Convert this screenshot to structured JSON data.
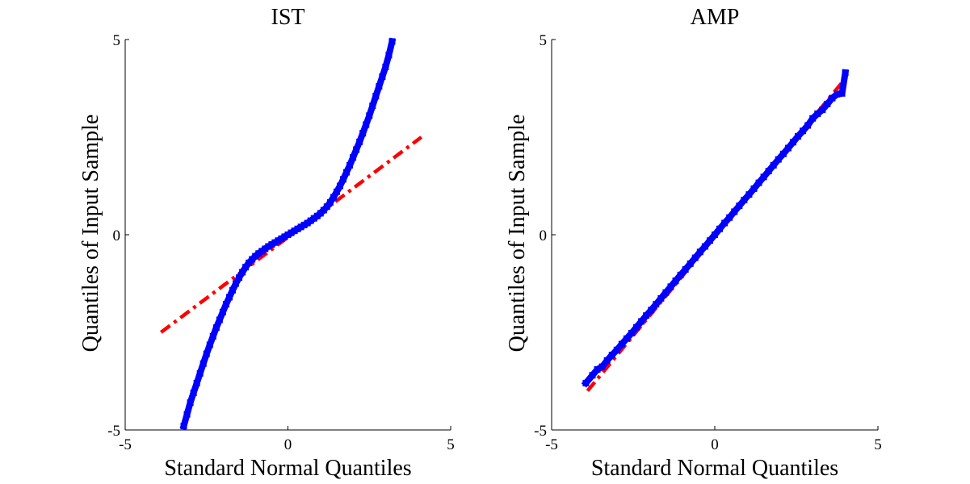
{
  "figure": {
    "background": "#ffffff"
  },
  "chart_data": [
    {
      "type": "scatter",
      "title": "IST",
      "xlabel": "Standard Normal Quantiles",
      "ylabel": "Quantiles of Input Sample",
      "xlim": [
        -5,
        5
      ],
      "ylim": [
        -5,
        5
      ],
      "xticks": [
        {
          "v": -5,
          "label": "-5"
        },
        {
          "v": 0,
          "label": "0"
        },
        {
          "v": 5,
          "label": "5"
        }
      ],
      "yticks": [
        {
          "v": -5,
          "label": "-5"
        },
        {
          "v": 0,
          "label": "0"
        },
        {
          "v": 5,
          "label": "5"
        }
      ],
      "series": [
        {
          "name": "reference line",
          "style": "dash-dot",
          "color": "#ff0000",
          "x": [
            -3.9,
            4.1
          ],
          "y": [
            -2.5,
            2.5
          ]
        },
        {
          "name": "sample quantiles",
          "style": "markers",
          "color": "#0000ff",
          "x": [
            -3.2,
            -3.1,
            -3.0,
            -2.9,
            -2.8,
            -2.7,
            -2.6,
            -2.5,
            -2.4,
            -2.3,
            -2.2,
            -2.1,
            -2.0,
            -1.9,
            -1.8,
            -1.7,
            -1.6,
            -1.5,
            -1.4,
            -1.3,
            -1.2,
            -1.1,
            -1.0,
            -0.9,
            -0.8,
            -0.7,
            -0.6,
            -0.5,
            -0.4,
            -0.3,
            -0.2,
            -0.1,
            0.0,
            0.1,
            0.2,
            0.3,
            0.4,
            0.5,
            0.6,
            0.7,
            0.8,
            0.9,
            1.0,
            1.1,
            1.2,
            1.3,
            1.4,
            1.5,
            1.6,
            1.7,
            1.8,
            1.9,
            2.0,
            2.1,
            2.2,
            2.3,
            2.4,
            2.5,
            2.6,
            2.7,
            2.8,
            2.9,
            3.0,
            3.1,
            3.2
          ],
          "y": [
            -4.9,
            -4.6,
            -4.3,
            -4.05,
            -3.8,
            -3.55,
            -3.3,
            -3.05,
            -2.82,
            -2.6,
            -2.38,
            -2.18,
            -1.98,
            -1.78,
            -1.6,
            -1.42,
            -1.25,
            -1.1,
            -0.96,
            -0.83,
            -0.72,
            -0.63,
            -0.55,
            -0.48,
            -0.42,
            -0.36,
            -0.3,
            -0.25,
            -0.2,
            -0.15,
            -0.1,
            -0.05,
            0.0,
            0.05,
            0.1,
            0.15,
            0.2,
            0.25,
            0.3,
            0.36,
            0.42,
            0.48,
            0.55,
            0.63,
            0.72,
            0.83,
            0.96,
            1.1,
            1.25,
            1.42,
            1.6,
            1.78,
            1.98,
            2.18,
            2.38,
            2.6,
            2.82,
            3.05,
            3.3,
            3.55,
            3.8,
            4.05,
            4.3,
            4.6,
            4.95
          ]
        }
      ]
    },
    {
      "type": "scatter",
      "title": "AMP",
      "xlabel": "Standard Normal Quantiles",
      "ylabel": "Quantiles of Input Sample",
      "xlim": [
        -5,
        5
      ],
      "ylim": [
        -5,
        5
      ],
      "xticks": [
        {
          "v": -5,
          "label": "-5"
        },
        {
          "v": 0,
          "label": "0"
        },
        {
          "v": 5,
          "label": "5"
        }
      ],
      "yticks": [
        {
          "v": -5,
          "label": "-5"
        },
        {
          "v": 0,
          "label": "0"
        },
        {
          "v": 5,
          "label": "5"
        }
      ],
      "series": [
        {
          "name": "reference line",
          "style": "dash-dot",
          "color": "#ff0000",
          "x": [
            -3.9,
            4.1
          ],
          "y": [
            -4.0,
            4.1
          ]
        },
        {
          "name": "sample quantiles",
          "style": "markers",
          "color": "#0000ff",
          "x": [
            -3.95,
            -3.75,
            -3.6,
            -3.45,
            -3.3,
            -3.15,
            -3.0,
            -2.85,
            -2.7,
            -2.55,
            -2.4,
            -2.25,
            -2.1,
            -1.95,
            -1.8,
            -1.65,
            -1.5,
            -1.35,
            -1.2,
            -1.05,
            -0.9,
            -0.75,
            -0.6,
            -0.45,
            -0.3,
            -0.15,
            0.0,
            0.15,
            0.3,
            0.45,
            0.6,
            0.75,
            0.9,
            1.05,
            1.2,
            1.35,
            1.5,
            1.65,
            1.8,
            1.95,
            2.1,
            2.25,
            2.4,
            2.55,
            2.7,
            2.85,
            3.0,
            3.15,
            3.3,
            3.45,
            3.6,
            3.75,
            3.9,
            4.0
          ],
          "y": [
            -3.8,
            -3.6,
            -3.45,
            -3.38,
            -3.22,
            -3.08,
            -2.95,
            -2.8,
            -2.66,
            -2.52,
            -2.37,
            -2.22,
            -2.07,
            -1.93,
            -1.78,
            -1.63,
            -1.48,
            -1.33,
            -1.18,
            -1.03,
            -0.89,
            -0.74,
            -0.59,
            -0.44,
            -0.3,
            -0.15,
            0.0,
            0.15,
            0.3,
            0.44,
            0.59,
            0.74,
            0.89,
            1.03,
            1.18,
            1.33,
            1.48,
            1.63,
            1.78,
            1.93,
            2.07,
            2.22,
            2.37,
            2.52,
            2.66,
            2.8,
            2.98,
            3.1,
            3.2,
            3.35,
            3.5,
            3.6,
            3.62,
            4.15
          ]
        }
      ]
    }
  ]
}
